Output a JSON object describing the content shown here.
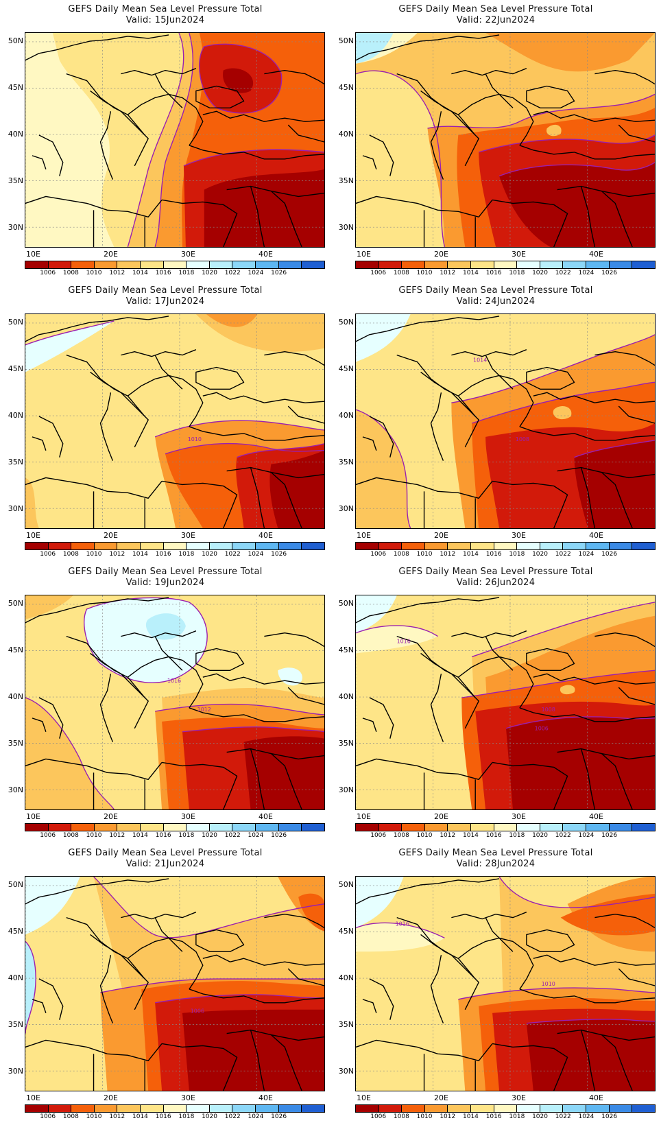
{
  "panel_title": "GEFS Daily Mean Sea Level Pressure Total",
  "lat_labels": [
    "50N",
    "45N",
    "40N",
    "35N",
    "30N"
  ],
  "lon_labels": [
    "10E",
    "20E",
    "30E",
    "40E"
  ],
  "colorbar": {
    "colors": [
      "#a50000",
      "#d21a0a",
      "#f5600a",
      "#fa9a30",
      "#fcc65c",
      "#fee588",
      "#fff8c2",
      "#e6ffff",
      "#b9f0fb",
      "#8cd7f8",
      "#5eb7f2",
      "#3a8ae6",
      "#1f5fd2"
    ],
    "labels": [
      "1006",
      "1008",
      "1010",
      "1012",
      "1014",
      "1016",
      "1018",
      "1020",
      "1022",
      "1024",
      "1026"
    ]
  },
  "panels": [
    {
      "id": "15jun",
      "valid": "Valid: 15Jun2024",
      "contour_labels": []
    },
    {
      "id": "22jun",
      "valid": "Valid: 22Jun2024",
      "contour_labels": []
    },
    {
      "id": "17jun",
      "valid": "Valid: 17Jun2024",
      "contour_labels": [
        "1010"
      ]
    },
    {
      "id": "24jun",
      "valid": "Valid: 24Jun2024",
      "contour_labels": [
        "1014",
        "1008"
      ]
    },
    {
      "id": "19jun",
      "valid": "Valid: 19Jun2024",
      "contour_labels": [
        "1016",
        "1012"
      ]
    },
    {
      "id": "26jun",
      "valid": "Valid: 26Jun2024",
      "contour_labels": [
        "1016",
        "1008",
        "1006"
      ]
    },
    {
      "id": "21jun",
      "valid": "Valid: 21Jun2024",
      "contour_labels": [
        "1006"
      ]
    },
    {
      "id": "28jun",
      "valid": "Valid: 28Jun2024",
      "contour_labels": [
        "1016",
        "1010"
      ]
    }
  ]
}
